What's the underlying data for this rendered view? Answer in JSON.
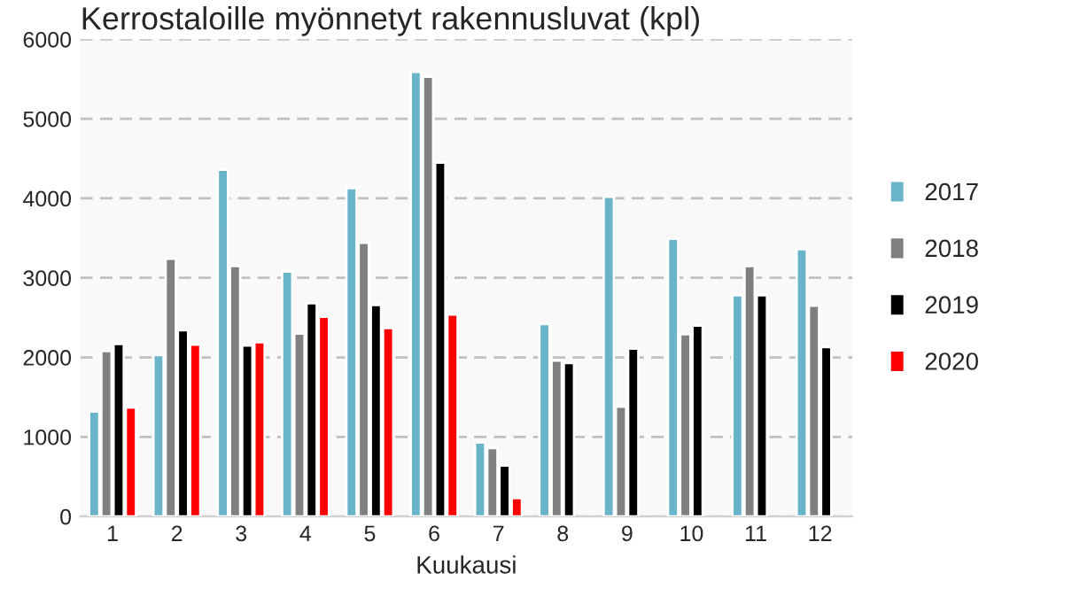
{
  "chart_data": {
    "type": "bar",
    "title": "Kerrostaloille myönnetyt rakennusluvat (kpl)",
    "xlabel": "Kuukausi",
    "categories": [
      "1",
      "2",
      "3",
      "4",
      "5",
      "6",
      "7",
      "8",
      "9",
      "10",
      "11",
      "12"
    ],
    "series": [
      {
        "name": "2017",
        "color": "#6ab4c9",
        "values": [
          1320,
          2030,
          4360,
          3080,
          4130,
          5590,
          930,
          2420,
          4020,
          3490,
          2780,
          3360
        ]
      },
      {
        "name": "2018",
        "color": "#808080",
        "values": [
          2080,
          3240,
          3150,
          2300,
          3440,
          5530,
          860,
          1960,
          1380,
          2290,
          3150,
          2650
        ]
      },
      {
        "name": "2019",
        "color": "#000000",
        "values": [
          2170,
          2340,
          2150,
          2680,
          2660,
          4450,
          640,
          1930,
          2110,
          2400,
          2780,
          2130
        ]
      },
      {
        "name": "2020",
        "color": "#ff0000",
        "values": [
          1370,
          2160,
          2190,
          2510,
          2370,
          2540,
          230,
          null,
          null,
          null,
          null,
          null
        ]
      }
    ],
    "ylim": [
      0,
      6000
    ],
    "yticks": [
      0,
      1000,
      2000,
      3000,
      4000,
      5000,
      6000
    ],
    "grid": "y",
    "legend": "right"
  }
}
